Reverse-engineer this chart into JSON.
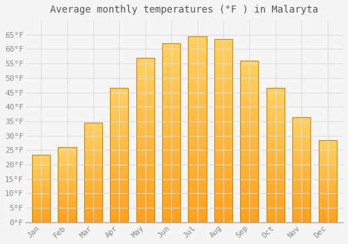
{
  "title": "Average monthly temperatures (°F ) in Malaryta",
  "months": [
    "Jan",
    "Feb",
    "Mar",
    "Apr",
    "May",
    "Jun",
    "Jul",
    "Aug",
    "Sep",
    "Oct",
    "Nov",
    "Dec"
  ],
  "values": [
    23.5,
    26.0,
    34.5,
    46.5,
    57.0,
    62.0,
    64.5,
    63.5,
    56.0,
    46.5,
    36.5,
    28.5
  ],
  "bar_color_top": "#FFD060",
  "bar_color_bottom": "#FFA020",
  "bar_edge_color": "#CC8800",
  "background_color": "#F5F5F5",
  "grid_color": "#DDDDDD",
  "text_color": "#888888",
  "title_color": "#555555",
  "ylim": [
    0,
    70
  ],
  "yticks": [
    0,
    5,
    10,
    15,
    20,
    25,
    30,
    35,
    40,
    45,
    50,
    55,
    60,
    65
  ],
  "ylabel_suffix": "°F",
  "title_fontsize": 10,
  "tick_fontsize": 8,
  "font_family": "monospace"
}
